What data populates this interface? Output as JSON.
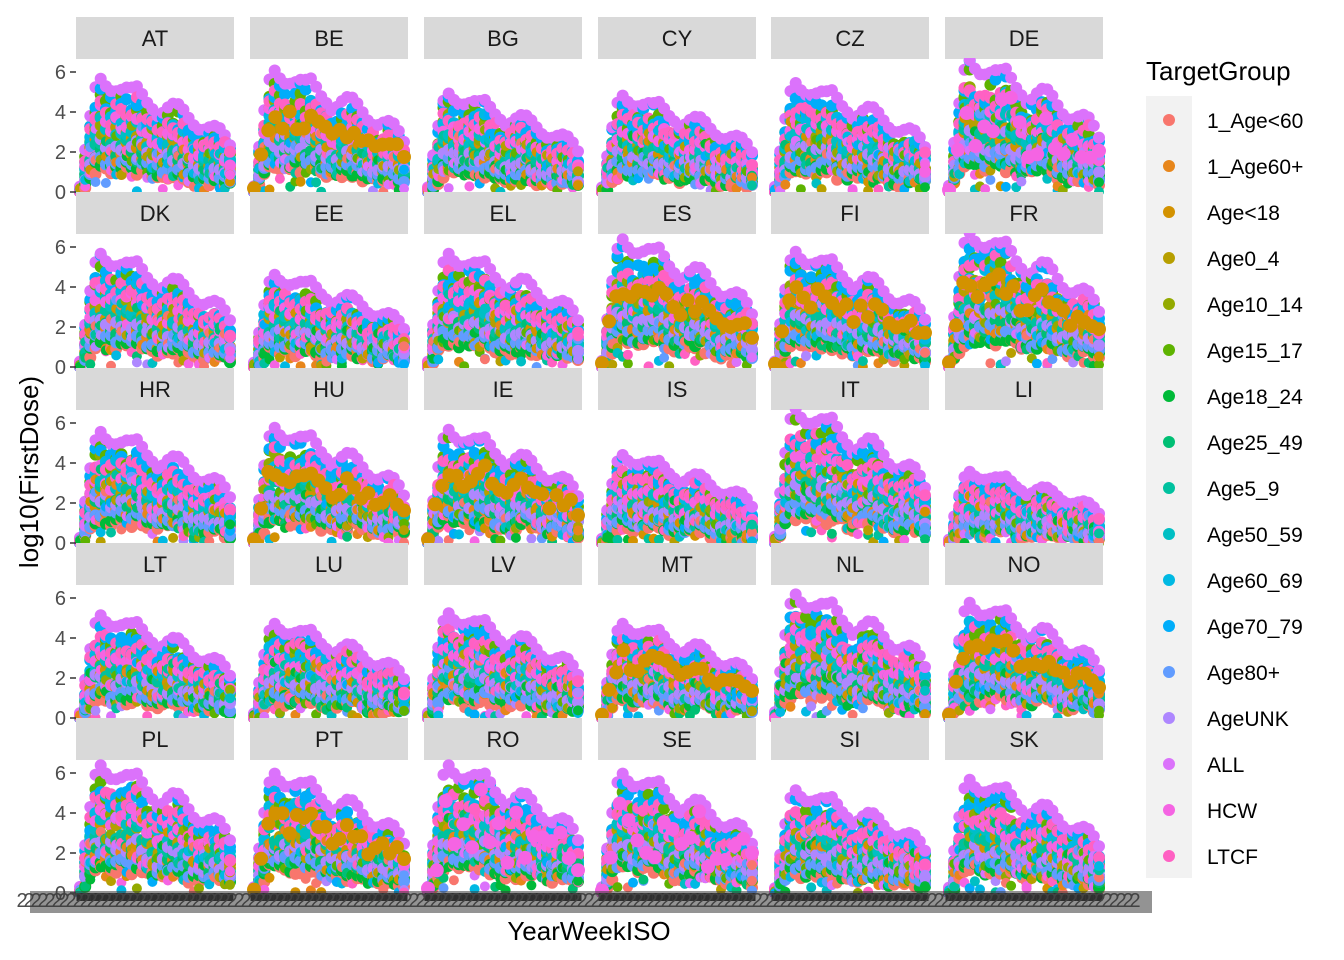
{
  "chart_data": {
    "type": "scatter",
    "facet_by": "ReportingCountry",
    "xlabel": "YearWeekISO",
    "ylabel": "log10(FirstDose)",
    "ylim": [
      0,
      6.5
    ],
    "y_ticks": [
      0,
      2,
      4,
      6
    ],
    "y_tick_labels": [
      "0",
      "2",
      "4",
      "6"
    ],
    "x_tick_labels": "overplotted (unreadable)",
    "grid": false,
    "legend_title": "TargetGroup",
    "legend_position": "right",
    "facets": [
      "AT",
      "BE",
      "BG",
      "CY",
      "CZ",
      "DE",
      "DK",
      "EE",
      "EL",
      "ES",
      "FI",
      "FR",
      "HR",
      "HU",
      "IE",
      "IS",
      "IT",
      "LI",
      "LT",
      "LU",
      "LV",
      "MT",
      "NL",
      "NO",
      "PL",
      "PT",
      "RO",
      "SE",
      "SI",
      "SK"
    ],
    "facet_peak_log10": {
      "AT": 5.4,
      "BE": 5.8,
      "BG": 4.7,
      "CY": 4.6,
      "CZ": 5.2,
      "DE": 6.3,
      "DK": 5.4,
      "EE": 4.4,
      "EL": 5.4,
      "ES": 6.1,
      "FI": 5.5,
      "FR": 6.4,
      "HR": 5.3,
      "HU": 5.5,
      "IE": 5.4,
      "IS": 4.2,
      "IT": 6.4,
      "LI": 3.4,
      "LT": 4.9,
      "LU": 4.5,
      "LV": 5.0,
      "MT": 4.5,
      "NL": 5.9,
      "NO": 5.5,
      "PL": 6.1,
      "PT": 5.7,
      "RO": 6.1,
      "SE": 5.7,
      "SI": 4.9,
      "SK": 5.4
    },
    "series": [
      {
        "name": "1_Age<60",
        "color": "#F8766D"
      },
      {
        "name": "1_Age60+",
        "color": "#E7861B"
      },
      {
        "name": "Age<18",
        "color": "#D39200"
      },
      {
        "name": "Age0_4",
        "color": "#B79F00"
      },
      {
        "name": "Age10_14",
        "color": "#93AA00"
      },
      {
        "name": "Age15_17",
        "color": "#5EB300"
      },
      {
        "name": "Age18_24",
        "color": "#00BA38"
      },
      {
        "name": "Age25_49",
        "color": "#00BF74"
      },
      {
        "name": "Age5_9",
        "color": "#00C19F"
      },
      {
        "name": "Age50_59",
        "color": "#00BFC4"
      },
      {
        "name": "Age60_69",
        "color": "#00B9E3"
      },
      {
        "name": "Age70_79",
        "color": "#00ADFA"
      },
      {
        "name": "Age80+",
        "color": "#619CFF"
      },
      {
        "name": "AgeUNK",
        "color": "#AE87FF"
      },
      {
        "name": "ALL",
        "color": "#DB72FB"
      },
      {
        "name": "HCW",
        "color": "#F564E3"
      },
      {
        "name": "LTCF",
        "color": "#FF61C3"
      }
    ]
  }
}
